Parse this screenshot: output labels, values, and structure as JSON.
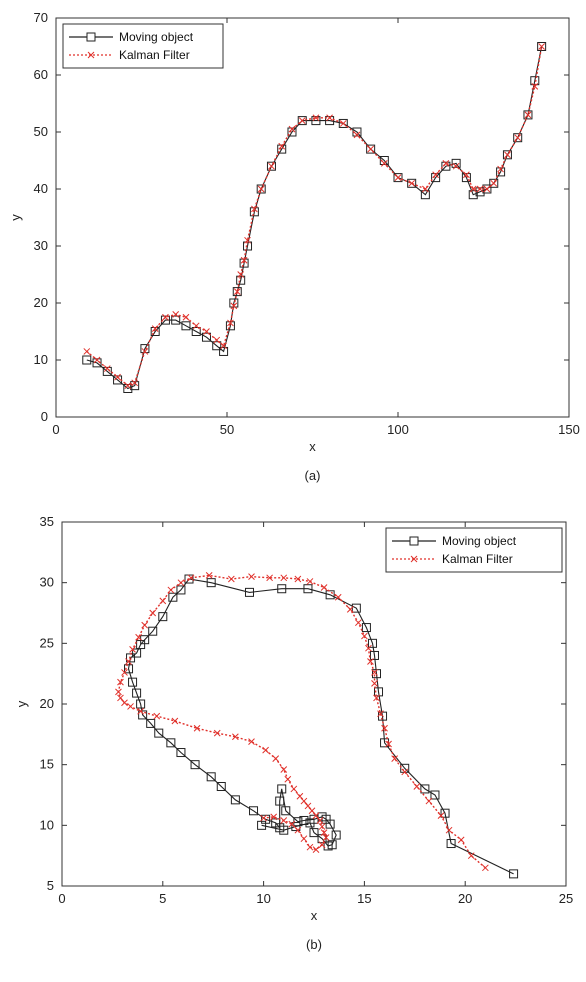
{
  "chart_data": [
    {
      "type": "line",
      "caption": "(a)",
      "xlabel": "x",
      "ylabel": "y",
      "xlim": [
        0,
        150
      ],
      "ylim": [
        0,
        70
      ],
      "xticks": [
        0,
        50,
        100,
        150
      ],
      "yticks": [
        0,
        10,
        20,
        30,
        40,
        50,
        60,
        70
      ],
      "grid": false,
      "legend_position": "top-left",
      "series": [
        {
          "name": "Moving object",
          "color": "#222222",
          "style": "solid",
          "marker": "square",
          "x": [
            9,
            12,
            15,
            18,
            21,
            23,
            26,
            29,
            32,
            35,
            38,
            41,
            44,
            47,
            49,
            51,
            52,
            53,
            54,
            55,
            56,
            58,
            60,
            63,
            66,
            69,
            72,
            76,
            80,
            84,
            88,
            92,
            96,
            100,
            104,
            108,
            111,
            114,
            117,
            120,
            122,
            124,
            126,
            128,
            130,
            132,
            135,
            138,
            140,
            142
          ],
          "y": [
            10,
            9.5,
            8,
            6.5,
            5,
            5.5,
            12,
            15,
            17,
            17,
            16,
            15,
            14,
            12.5,
            11.5,
            16,
            20,
            22,
            24,
            27,
            30,
            36,
            40,
            44,
            47,
            50,
            52,
            52,
            52,
            51.5,
            50,
            47,
            45,
            42,
            41,
            39,
            42,
            44,
            44.5,
            42,
            39,
            39.5,
            40,
            41,
            43,
            46,
            49,
            53,
            59,
            65
          ]
        },
        {
          "name": "Kalman Filter",
          "color": "#e0302a",
          "style": "dotted",
          "marker": "x",
          "x": [
            9,
            12,
            15,
            18,
            21,
            23,
            26,
            29,
            32,
            35,
            38,
            41,
            44,
            47,
            49,
            51,
            52,
            53,
            54,
            55,
            56,
            58,
            60,
            63,
            66,
            69,
            72,
            76,
            80,
            84,
            88,
            92,
            96,
            100,
            104,
            108,
            111,
            114,
            117,
            120,
            122,
            124,
            126,
            128,
            130,
            132,
            135,
            138,
            140,
            142
          ],
          "y": [
            11.5,
            10,
            8.5,
            7,
            5.5,
            6,
            11.5,
            15.5,
            17.5,
            18,
            17.5,
            16,
            15,
            13.5,
            12.5,
            16.5,
            19.5,
            22,
            25,
            27.5,
            31,
            36.5,
            40,
            44,
            47.5,
            50.5,
            52,
            52.5,
            52.5,
            51.5,
            49.5,
            47,
            44.5,
            42,
            41,
            40,
            42.5,
            44.5,
            44,
            42.5,
            40,
            40,
            40,
            41,
            43.5,
            46,
            49,
            53,
            58,
            65
          ]
        }
      ]
    },
    {
      "type": "line",
      "caption": "(b)",
      "xlabel": "x",
      "ylabel": "y",
      "xlim": [
        0,
        25
      ],
      "ylim": [
        5,
        35
      ],
      "xticks": [
        0,
        5,
        10,
        15,
        20,
        25
      ],
      "yticks": [
        5,
        10,
        15,
        20,
        25,
        30,
        35
      ],
      "grid": false,
      "legend_position": "top-right",
      "series": [
        {
          "name": "Moving object",
          "color": "#222222",
          "style": "solid",
          "marker": "square",
          "x": [
            22.4,
            19.3,
            19,
            18.5,
            18,
            17,
            16,
            15.9,
            15.7,
            15.6,
            15.5,
            15.4,
            15.1,
            14.6,
            13.3,
            12.2,
            10.9,
            9.3,
            7.4,
            6.3,
            5.9,
            5.5,
            5,
            4.5,
            4.1,
            3.9,
            3.7,
            3.4,
            3.3,
            3.5,
            3.7,
            3.9,
            4,
            4.4,
            4.8,
            5.4,
            5.9,
            6.6,
            7.4,
            7.9,
            8.6,
            9.5,
            10.1,
            10.6,
            10.8,
            10.8,
            10.9,
            11.1,
            11.7,
            12,
            12.5,
            12.9,
            13.1,
            13.3,
            13.6,
            13.4,
            13.2,
            12.9,
            12.5,
            12.3,
            11.6,
            11,
            9.9
          ],
          "y": [
            6,
            8.5,
            11,
            12.5,
            13,
            14.7,
            16.8,
            19,
            21,
            22.5,
            24,
            25,
            26.3,
            27.9,
            29,
            29.5,
            29.5,
            29.2,
            30,
            30.3,
            29.4,
            28.8,
            27.2,
            26,
            25.3,
            24.9,
            24.2,
            23.8,
            22.9,
            21.8,
            20.9,
            20,
            19.1,
            18.4,
            17.6,
            16.8,
            16,
            15,
            14,
            13.2,
            12.1,
            11.2,
            10.5,
            10.2,
            9.8,
            12,
            13,
            11.2,
            10.3,
            10.4,
            10.5,
            10.7,
            10.5,
            10.1,
            9.2,
            8.4,
            8.3,
            8.9,
            9.4,
            10.2,
            9.9,
            9.6,
            10
          ]
        },
        {
          "name": "Kalman Filter",
          "color": "#e0302a",
          "style": "dotted",
          "marker": "x",
          "x": [
            21,
            20.3,
            19.8,
            19.2,
            18.8,
            18.2,
            17.6,
            17,
            16.5,
            16.2,
            16,
            15.8,
            15.6,
            15.5,
            15.5,
            15.3,
            15.2,
            15,
            14.7,
            14.3,
            13.7,
            13,
            12.3,
            11.7,
            11,
            10.3,
            9.4,
            8.4,
            7.3,
            6.4,
            5.9,
            5.4,
            5,
            4.5,
            4.1,
            3.8,
            3.5,
            3.3,
            3.1,
            2.9,
            2.8,
            2.9,
            3.1,
            3.4,
            3.9,
            4.7,
            5.6,
            6.7,
            7.7,
            8.6,
            9.4,
            10.1,
            10.6,
            11,
            11.2,
            11.5,
            11.8,
            12,
            12.2,
            12.4,
            12.6,
            12.8,
            12.9,
            13,
            13.1,
            12.9,
            12.6,
            12.3,
            12,
            11.7,
            11.4,
            11,
            10.5,
            10
          ],
          "y": [
            6.5,
            7.5,
            8.8,
            9.6,
            10.8,
            12,
            13.2,
            14.4,
            15.5,
            16.7,
            18,
            19.2,
            20.5,
            21.7,
            22.6,
            23.5,
            24.6,
            25.6,
            26.7,
            27.8,
            28.8,
            29.6,
            30.1,
            30.3,
            30.4,
            30.4,
            30.5,
            30.3,
            30.6,
            30.4,
            30,
            29.4,
            28.5,
            27.5,
            26.5,
            25.5,
            24.5,
            23.5,
            22.6,
            21.8,
            21,
            20.5,
            20.1,
            19.8,
            19.4,
            19,
            18.6,
            18,
            17.6,
            17.3,
            16.9,
            16.2,
            15.5,
            14.6,
            13.8,
            13,
            12.4,
            12,
            11.6,
            11.2,
            10.8,
            10.4,
            9.9,
            9.4,
            9,
            8.4,
            8,
            8.2,
            8.9,
            9.6,
            10.1,
            10.4,
            10.7,
            10.6
          ]
        }
      ]
    }
  ]
}
